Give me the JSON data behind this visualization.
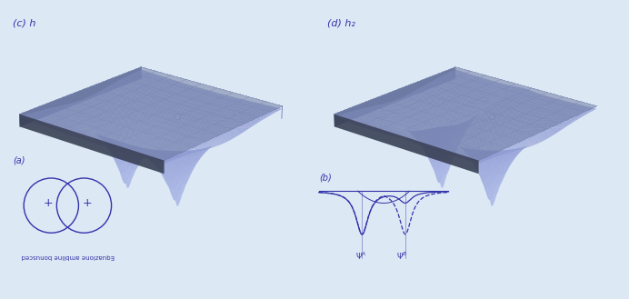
{
  "bg_color": "#dde8f5",
  "line_color": "#3333aa",
  "slab_color": "#8899cc",
  "slab_alpha": 0.75,
  "surface_color_light": "#aabbdd",
  "surface_color_dark": "#6677bb",
  "label_c": "(c) h",
  "label_d": "(d) h₂",
  "label_a": "(a)",
  "label_b": "(b)",
  "text_bottom": "Equazione ambline bonusced",
  "psi_a": "Ψ^A",
  "psi_b": "Ψ^B",
  "grid_color": "#6677bb",
  "slab_edge_color": "#334499"
}
